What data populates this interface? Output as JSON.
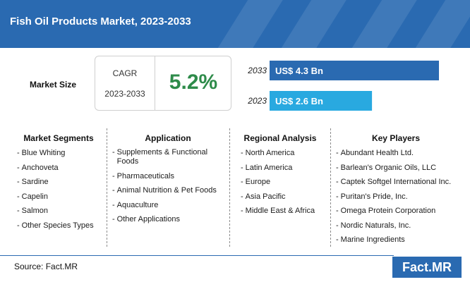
{
  "header": {
    "title": "Fish Oil Products Market, 2023-2033"
  },
  "market_size": {
    "label": "Market Size",
    "cagr_label": "CAGR",
    "cagr_period": "2023-2033",
    "cagr_value": "5.2%"
  },
  "chart_data": {
    "type": "bar",
    "orientation": "horizontal",
    "categories": [
      "2033",
      "2023"
    ],
    "values": [
      4.3,
      2.6
    ],
    "value_labels": [
      "US$ 4.3 Bn",
      "US$ 2.6 Bn"
    ],
    "unit": "US$ Bn",
    "bar_colors": [
      "#2a6ab1",
      "#29a9e0"
    ]
  },
  "columns": [
    {
      "heading": "Market Segments",
      "items": [
        "Blue Whiting",
        "Anchoveta",
        "Sardine",
        "Capelin",
        "Salmon",
        "Other Species Types"
      ]
    },
    {
      "heading": "Application",
      "items": [
        "Supplements & Functional Foods",
        "Pharmaceuticals",
        "Animal Nutrition & Pet Foods",
        "Aquaculture",
        "Other Applications"
      ]
    },
    {
      "heading": "Regional Analysis",
      "items": [
        "North America",
        "Latin America",
        "Europe",
        "Asia Pacific",
        "Middle East & Africa"
      ]
    },
    {
      "heading": "Key Players",
      "items": [
        "Abundant Health Ltd.",
        "Barlean's Organic Oils, LLC",
        "Captek Softgel International Inc.",
        "Puritan's Pride, Inc.",
        "Omega Protein Corporation",
        "Nordic Naturals, Inc.",
        "Marine Ingredients"
      ]
    }
  ],
  "footer": {
    "source": "Source: Fact.MR",
    "logo_text": "Fact.MR"
  },
  "colors": {
    "brand_blue": "#2a6ab1",
    "light_blue": "#29a9e0",
    "cagr_green": "#2e8b4a"
  }
}
